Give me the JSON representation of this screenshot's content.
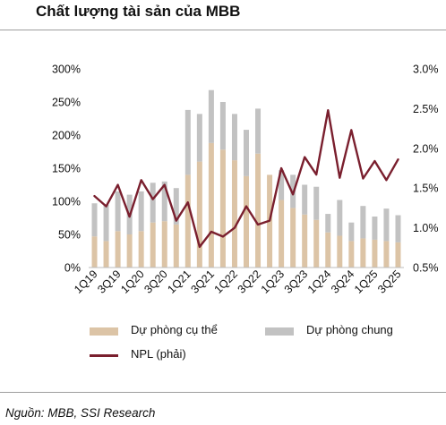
{
  "title": "Chất lượng tài sản của MBB",
  "source": "Nguồn:  MBB, SSI Research",
  "colors": {
    "specific": "#dcc4a6",
    "general": "#c2c2c2",
    "npl": "#7a1f2e"
  },
  "chart_data": {
    "type": "bar",
    "stacked": true,
    "categories": [
      "1Q19",
      "2Q19",
      "3Q19",
      "4Q19",
      "1Q20",
      "2Q20",
      "3Q20",
      "4Q20",
      "1Q21",
      "2Q21",
      "3Q21",
      "4Q21",
      "1Q22",
      "2Q22",
      "3Q22",
      "4Q22",
      "1Q23",
      "2Q23",
      "3Q23",
      "4Q23",
      "1Q24",
      "2Q24",
      "3Q24",
      "4Q24",
      "1Q25",
      "2Q25",
      "3Q25"
    ],
    "x_tick_labels": [
      "1Q19",
      "3Q19",
      "1Q20",
      "3Q20",
      "1Q21",
      "3Q21",
      "1Q22",
      "3Q22",
      "1Q23",
      "3Q23",
      "1Q24",
      "3Q24",
      "1Q25",
      "3Q25"
    ],
    "series": [
      {
        "name": "Dự phòng cụ thể",
        "axis": "left",
        "type": "bar",
        "values": [
          47,
          40,
          55,
          50,
          55,
          68,
          70,
          65,
          140,
          160,
          188,
          178,
          162,
          138,
          172,
          140,
          102,
          90,
          80,
          72,
          53,
          48,
          40,
          44,
          42,
          40,
          38
        ]
      },
      {
        "name": "Dự phòng chung",
        "axis": "left",
        "type": "bar",
        "values": [
          50,
          55,
          60,
          60,
          60,
          60,
          60,
          55,
          98,
          72,
          80,
          72,
          70,
          70,
          68,
          0,
          45,
          50,
          45,
          50,
          28,
          54,
          28,
          49,
          35,
          49,
          41
        ]
      },
      {
        "name": "NPL (phải)",
        "axis": "right",
        "type": "line",
        "values": [
          1.4,
          1.27,
          1.54,
          1.14,
          1.6,
          1.36,
          1.54,
          1.09,
          1.32,
          0.76,
          0.95,
          0.89,
          1.0,
          1.27,
          1.04,
          1.09,
          1.75,
          1.42,
          1.89,
          1.67,
          2.48,
          1.63,
          2.23,
          1.62,
          1.84,
          1.6,
          1.86
        ]
      }
    ],
    "y_left": {
      "min": 0,
      "max": 300,
      "ticks": [
        "0%",
        "50%",
        "100%",
        "150%",
        "200%",
        "250%",
        "300%"
      ]
    },
    "y_right": {
      "min": 0.5,
      "max": 3.0,
      "ticks": [
        "0.5%",
        "1.0%",
        "1.5%",
        "2.0%",
        "2.5%",
        "3.0%"
      ]
    },
    "grid": false,
    "legend": {
      "position": "bottom",
      "items": [
        "Dự phòng cụ thể",
        "Dự phòng chung",
        "NPL (phải)"
      ]
    }
  }
}
